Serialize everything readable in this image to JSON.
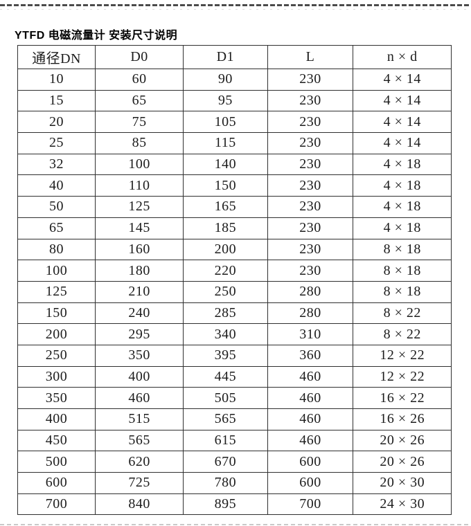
{
  "page": {
    "title": "YTFD 电磁流量计 安装尺寸说明"
  },
  "table": {
    "columns": [
      "通径DN",
      "D0",
      "D1",
      "L",
      "n × d"
    ],
    "rows": [
      [
        "10",
        "60",
        "90",
        "230",
        "4 × 14"
      ],
      [
        "15",
        "65",
        "95",
        "230",
        "4 × 14"
      ],
      [
        "20",
        "75",
        "105",
        "230",
        "4 × 14"
      ],
      [
        "25",
        "85",
        "115",
        "230",
        "4 × 14"
      ],
      [
        "32",
        "100",
        "140",
        "230",
        "4 × 18"
      ],
      [
        "40",
        "110",
        "150",
        "230",
        "4 × 18"
      ],
      [
        "50",
        "125",
        "165",
        "230",
        "4 × 18"
      ],
      [
        "65",
        "145",
        "185",
        "230",
        "4 × 18"
      ],
      [
        "80",
        "160",
        "200",
        "230",
        "8 × 18"
      ],
      [
        "100",
        "180",
        "220",
        "230",
        "8 × 18"
      ],
      [
        "125",
        "210",
        "250",
        "280",
        "8 × 18"
      ],
      [
        "150",
        "240",
        "285",
        "280",
        "8 × 22"
      ],
      [
        "200",
        "295",
        "340",
        "310",
        "8 × 22"
      ],
      [
        "250",
        "350",
        "395",
        "360",
        "12 × 22"
      ],
      [
        "300",
        "400",
        "445",
        "460",
        "12 × 22"
      ],
      [
        "350",
        "460",
        "505",
        "460",
        "16 × 22"
      ],
      [
        "400",
        "515",
        "565",
        "460",
        "16 × 26"
      ],
      [
        "450",
        "565",
        "615",
        "460",
        "20 × 26"
      ],
      [
        "500",
        "620",
        "670",
        "600",
        "20 × 26"
      ],
      [
        "600",
        "725",
        "780",
        "600",
        "20 × 30"
      ],
      [
        "700",
        "840",
        "895",
        "700",
        "24 × 30"
      ]
    ]
  },
  "colors": {
    "table_border": "#2f2f2f",
    "text": "#1c1c1c",
    "top_divider": "#4b4b4b",
    "bottom_divider": "#c9c9c9",
    "background": "#ffffff"
  }
}
